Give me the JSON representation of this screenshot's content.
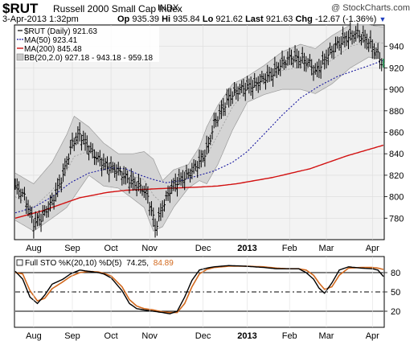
{
  "header": {
    "ticker": "$RUT",
    "company": "Russell 2000 Small Cap Index",
    "exchange": "INDX",
    "brand": "@ StockCharts.com",
    "date": "3-Apr-2013 1:32pm",
    "open_label": "Op",
    "open": "935.39",
    "high_label": "Hi",
    "high": "935.84",
    "low_label": "Lo",
    "low": "921.62",
    "last_label": "Last",
    "last": "921.63",
    "chg_label": "Chg",
    "chg": "-12.67 (-1.36%)",
    "arrow": "▼"
  },
  "legend": {
    "price": "$RUT (Daily) 921.63",
    "ma50": "MA(50) 923.41",
    "ma200": "MA(200) 845.48",
    "bb": "BB(20,2.0) 927.18 - 943.18 - 959.18"
  },
  "sto_legend": {
    "title": "Full STO %K(20,10) %D(5)",
    "k": "74.25,",
    "d": "84.89"
  },
  "colors": {
    "ma50": "#1a1aa0",
    "ma200": "#d21010",
    "bb_fill": "#d4d4d4",
    "bb_line": "#9a9a9a",
    "price": "#000000",
    "k_line": "#000000",
    "d_line": "#d2691e",
    "brand": "#444444"
  },
  "chart_data": {
    "type": "ohlc",
    "title": "$RUT Russell 2000 Small Cap Index INDX",
    "x_labels": [
      "Aug",
      "Sep",
      "Oct",
      "Nov",
      "Dec",
      "2013",
      "Feb",
      "Mar",
      "Apr"
    ],
    "x_label_index": [
      10,
      31,
      52,
      73,
      102,
      126,
      149,
      169,
      194
    ],
    "price_ylim": [
      760,
      960
    ],
    "price_yticks": [
      780,
      800,
      820,
      840,
      860,
      880,
      900,
      920,
      940
    ],
    "sto_ylim": [
      0,
      100
    ],
    "sto_yticks": [
      20,
      50,
      80
    ],
    "sto_levels": [
      20,
      50,
      80
    ],
    "price_keypoints": [
      [
        0,
        810
      ],
      [
        5,
        800
      ],
      [
        10,
        775
      ],
      [
        14,
        780
      ],
      [
        20,
        795
      ],
      [
        26,
        820
      ],
      [
        31,
        850
      ],
      [
        35,
        858
      ],
      [
        40,
        845
      ],
      [
        45,
        835
      ],
      [
        50,
        828
      ],
      [
        55,
        825
      ],
      [
        60,
        818
      ],
      [
        65,
        812
      ],
      [
        69,
        808
      ],
      [
        72,
        800
      ],
      [
        75,
        780
      ],
      [
        76,
        770
      ],
      [
        80,
        790
      ],
      [
        84,
        806
      ],
      [
        88,
        814
      ],
      [
        92,
        818
      ],
      [
        96,
        824
      ],
      [
        100,
        832
      ],
      [
        103,
        840
      ],
      [
        105,
        848
      ],
      [
        108,
        868
      ],
      [
        112,
        880
      ],
      [
        116,
        892
      ],
      [
        120,
        898
      ],
      [
        125,
        902
      ],
      [
        130,
        904
      ],
      [
        135,
        910
      ],
      [
        140,
        915
      ],
      [
        145,
        924
      ],
      [
        150,
        930
      ],
      [
        155,
        928
      ],
      [
        160,
        924
      ],
      [
        163,
        916
      ],
      [
        166,
        922
      ],
      [
        170,
        932
      ],
      [
        175,
        942
      ],
      [
        180,
        948
      ],
      [
        186,
        952
      ],
      [
        192,
        944
      ],
      [
        197,
        932
      ],
      [
        200,
        922
      ]
    ],
    "ma50_keypoints": [
      [
        0,
        785
      ],
      [
        10,
        790
      ],
      [
        20,
        800
      ],
      [
        30,
        813
      ],
      [
        40,
        822
      ],
      [
        52,
        827
      ],
      [
        60,
        826
      ],
      [
        68,
        820
      ],
      [
        75,
        816
      ],
      [
        82,
        813
      ],
      [
        90,
        815
      ],
      [
        100,
        820
      ],
      [
        108,
        824
      ],
      [
        118,
        832
      ],
      [
        126,
        842
      ],
      [
        135,
        858
      ],
      [
        145,
        876
      ],
      [
        155,
        892
      ],
      [
        165,
        903
      ],
      [
        175,
        912
      ],
      [
        185,
        918
      ],
      [
        192,
        922
      ],
      [
        200,
        927
      ]
    ],
    "ma200_keypoints": [
      [
        0,
        780
      ],
      [
        15,
        787
      ],
      [
        25,
        793
      ],
      [
        35,
        799
      ],
      [
        50,
        804
      ],
      [
        60,
        806
      ],
      [
        72,
        807
      ],
      [
        85,
        808
      ],
      [
        100,
        809
      ],
      [
        110,
        810
      ],
      [
        120,
        812
      ],
      [
        130,
        815
      ],
      [
        140,
        818
      ],
      [
        150,
        822
      ],
      [
        160,
        826
      ],
      [
        170,
        832
      ],
      [
        180,
        838
      ],
      [
        190,
        843
      ],
      [
        200,
        848
      ]
    ],
    "bb_keypoints": [
      [
        0,
        822,
        778
      ],
      [
        10,
        812,
        768
      ],
      [
        20,
        832,
        780
      ],
      [
        28,
        858,
        790
      ],
      [
        32,
        875,
        800
      ],
      [
        40,
        865,
        820
      ],
      [
        48,
        850,
        810
      ],
      [
        56,
        840,
        808
      ],
      [
        64,
        840,
        798
      ],
      [
        70,
        842,
        790
      ],
      [
        75,
        835,
        768
      ],
      [
        80,
        815,
        772
      ],
      [
        86,
        825,
        790
      ],
      [
        94,
        830,
        808
      ],
      [
        100,
        846,
        815
      ],
      [
        104,
        865,
        812
      ],
      [
        110,
        885,
        830
      ],
      [
        118,
        905,
        862
      ],
      [
        126,
        912,
        888
      ],
      [
        135,
        922,
        895
      ],
      [
        145,
        935,
        900
      ],
      [
        155,
        942,
        900
      ],
      [
        163,
        938,
        896
      ],
      [
        172,
        950,
        905
      ],
      [
        182,
        960,
        920
      ],
      [
        192,
        960,
        930
      ],
      [
        200,
        958,
        928
      ]
    ],
    "k_keypoints": [
      [
        0,
        82
      ],
      [
        4,
        70
      ],
      [
        8,
        42
      ],
      [
        12,
        32
      ],
      [
        16,
        45
      ],
      [
        20,
        62
      ],
      [
        26,
        70
      ],
      [
        30,
        78
      ],
      [
        35,
        84
      ],
      [
        40,
        82
      ],
      [
        45,
        80
      ],
      [
        48,
        78
      ],
      [
        52,
        72
      ],
      [
        58,
        52
      ],
      [
        62,
        32
      ],
      [
        66,
        24
      ],
      [
        70,
        22
      ],
      [
        75,
        20
      ],
      [
        80,
        18
      ],
      [
        84,
        16
      ],
      [
        88,
        20
      ],
      [
        92,
        42
      ],
      [
        96,
        68
      ],
      [
        100,
        84
      ],
      [
        104,
        87
      ],
      [
        108,
        89
      ],
      [
        112,
        90
      ],
      [
        116,
        91
      ],
      [
        125,
        90
      ],
      [
        135,
        88
      ],
      [
        142,
        86
      ],
      [
        148,
        86
      ],
      [
        154,
        86
      ],
      [
        158,
        80
      ],
      [
        162,
        70
      ],
      [
        165,
        56
      ],
      [
        168,
        48
      ],
      [
        172,
        64
      ],
      [
        176,
        84
      ],
      [
        181,
        89
      ],
      [
        188,
        87
      ],
      [
        194,
        86
      ],
      [
        197,
        84
      ],
      [
        200,
        74
      ]
    ],
    "d_keypoints": [
      [
        0,
        80
      ],
      [
        4,
        78
      ],
      [
        8,
        52
      ],
      [
        12,
        36
      ],
      [
        16,
        40
      ],
      [
        20,
        55
      ],
      [
        26,
        66
      ],
      [
        30,
        74
      ],
      [
        35,
        80
      ],
      [
        40,
        82
      ],
      [
        45,
        81
      ],
      [
        48,
        79
      ],
      [
        52,
        75
      ],
      [
        58,
        58
      ],
      [
        62,
        38
      ],
      [
        66,
        28
      ],
      [
        70,
        24
      ],
      [
        75,
        22
      ],
      [
        80,
        19
      ],
      [
        84,
        18
      ],
      [
        88,
        18
      ],
      [
        92,
        32
      ],
      [
        96,
        58
      ],
      [
        100,
        78
      ],
      [
        104,
        85
      ],
      [
        108,
        88
      ],
      [
        112,
        89
      ],
      [
        116,
        90
      ],
      [
        125,
        90
      ],
      [
        135,
        89
      ],
      [
        142,
        87
      ],
      [
        148,
        86
      ],
      [
        154,
        86
      ],
      [
        158,
        84
      ],
      [
        162,
        76
      ],
      [
        165,
        64
      ],
      [
        168,
        54
      ],
      [
        172,
        58
      ],
      [
        176,
        76
      ],
      [
        181,
        87
      ],
      [
        188,
        88
      ],
      [
        194,
        88
      ],
      [
        197,
        87
      ],
      [
        200,
        85
      ]
    ]
  }
}
